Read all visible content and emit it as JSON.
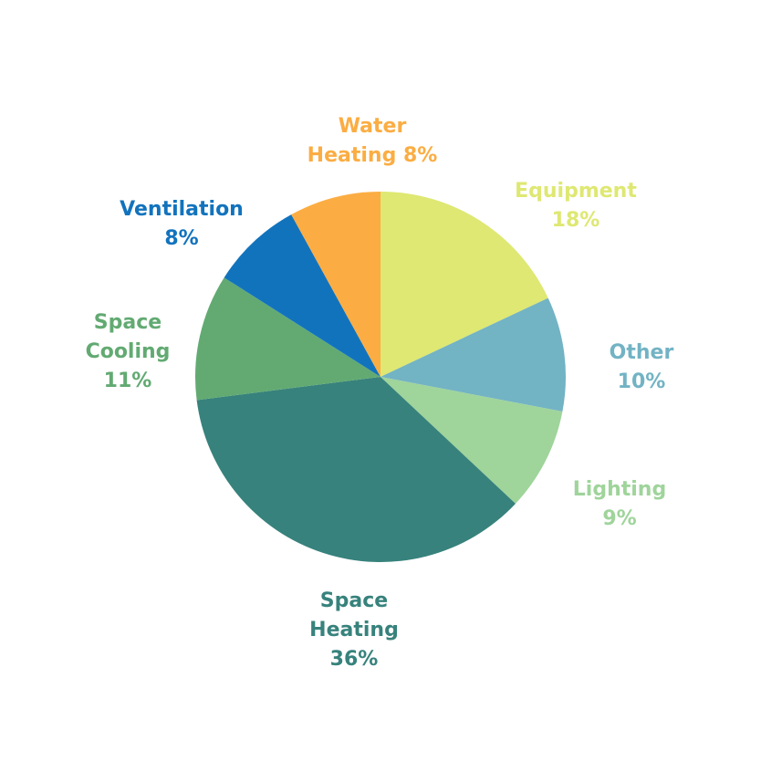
{
  "chart_data": {
    "type": "pie",
    "start_angle_deg": 0,
    "direction": "clockwise",
    "slices": [
      {
        "name": "Equipment",
        "value": 18,
        "label_lines": [
          "Equipment",
          "18%"
        ],
        "color": "#dee872"
      },
      {
        "name": "Other",
        "value": 10,
        "label_lines": [
          "Other",
          "10%"
        ],
        "color": "#72b3c4"
      },
      {
        "name": "Lighting",
        "value": 9,
        "label_lines": [
          "Lighting",
          "9%"
        ],
        "color": "#9fd49b"
      },
      {
        "name": "Space Heating",
        "value": 36,
        "label_lines": [
          "Space",
          "Heating",
          "36%"
        ],
        "color": "#37827c"
      },
      {
        "name": "Space Cooling",
        "value": 11,
        "label_lines": [
          "Space",
          "Cooling",
          "11%"
        ],
        "color": "#62aa72"
      },
      {
        "name": "Ventilation",
        "value": 8,
        "label_lines": [
          "Ventilation",
          "8%"
        ],
        "color": "#1273bd"
      },
      {
        "name": "Water Heating",
        "value": 8,
        "label_lines": [
          "Water",
          "Heating 8%"
        ],
        "color": "#fbad43"
      }
    ]
  }
}
